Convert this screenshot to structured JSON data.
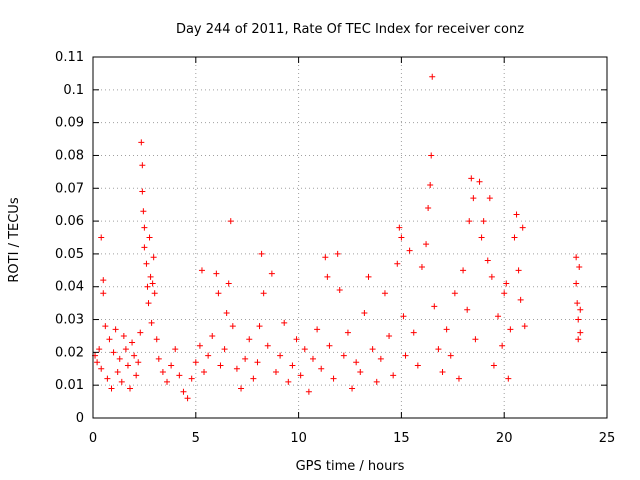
{
  "chart_data": {
    "type": "scatter",
    "title": "Day 244 of 2011, Rate Of TEC Index for receiver conz",
    "xlabel": "GPS time / hours",
    "ylabel": "ROTI / TECUs",
    "xlim": [
      0,
      25
    ],
    "ylim": [
      0,
      0.11
    ],
    "xticks": [
      "0",
      "5",
      "10",
      "15",
      "20",
      "25"
    ],
    "yticks": [
      "0",
      "0.01",
      "0.02",
      "0.03",
      "0.04",
      "0.05",
      "0.06",
      "0.07",
      "0.08",
      "0.09",
      "0.1",
      "0.11"
    ],
    "grid": true,
    "marker": "+",
    "color": "#ff0000",
    "series": [
      {
        "points": [
          [
            0.1,
            0.019
          ],
          [
            0.2,
            0.017
          ],
          [
            0.3,
            0.021
          ],
          [
            0.4,
            0.015
          ],
          [
            0.4,
            0.055
          ],
          [
            0.5,
            0.038
          ],
          [
            0.5,
            0.042
          ],
          [
            0.6,
            0.028
          ],
          [
            0.7,
            0.012
          ],
          [
            0.8,
            0.024
          ],
          [
            0.9,
            0.009
          ],
          [
            1.0,
            0.02
          ],
          [
            1.1,
            0.027
          ],
          [
            1.2,
            0.014
          ],
          [
            1.3,
            0.018
          ],
          [
            1.4,
            0.011
          ],
          [
            1.5,
            0.025
          ],
          [
            1.6,
            0.021
          ],
          [
            1.7,
            0.016
          ],
          [
            1.8,
            0.009
          ],
          [
            1.9,
            0.023
          ],
          [
            2.0,
            0.019
          ],
          [
            2.1,
            0.013
          ],
          [
            2.2,
            0.017
          ],
          [
            2.3,
            0.026
          ],
          [
            2.35,
            0.084
          ],
          [
            2.4,
            0.077
          ],
          [
            2.4,
            0.069
          ],
          [
            2.45,
            0.063
          ],
          [
            2.5,
            0.058
          ],
          [
            2.5,
            0.052
          ],
          [
            2.6,
            0.047
          ],
          [
            2.65,
            0.04
          ],
          [
            2.7,
            0.035
          ],
          [
            2.75,
            0.055
          ],
          [
            2.8,
            0.043
          ],
          [
            2.85,
            0.029
          ],
          [
            2.9,
            0.041
          ],
          [
            2.95,
            0.049
          ],
          [
            3.0,
            0.038
          ],
          [
            3.1,
            0.024
          ],
          [
            3.2,
            0.018
          ],
          [
            3.4,
            0.014
          ],
          [
            3.6,
            0.011
          ],
          [
            3.8,
            0.016
          ],
          [
            4.0,
            0.021
          ],
          [
            4.2,
            0.013
          ],
          [
            4.4,
            0.008
          ],
          [
            4.6,
            0.006
          ],
          [
            4.8,
            0.012
          ],
          [
            5.0,
            0.017
          ],
          [
            5.2,
            0.022
          ],
          [
            5.3,
            0.045
          ],
          [
            5.4,
            0.014
          ],
          [
            5.6,
            0.019
          ],
          [
            5.8,
            0.025
          ],
          [
            6.0,
            0.044
          ],
          [
            6.1,
            0.038
          ],
          [
            6.2,
            0.016
          ],
          [
            6.4,
            0.021
          ],
          [
            6.5,
            0.032
          ],
          [
            6.6,
            0.041
          ],
          [
            6.7,
            0.06
          ],
          [
            6.8,
            0.028
          ],
          [
            7.0,
            0.015
          ],
          [
            7.2,
            0.009
          ],
          [
            7.4,
            0.018
          ],
          [
            7.6,
            0.024
          ],
          [
            7.8,
            0.012
          ],
          [
            8.0,
            0.017
          ],
          [
            8.1,
            0.028
          ],
          [
            8.2,
            0.05
          ],
          [
            8.3,
            0.038
          ],
          [
            8.5,
            0.022
          ],
          [
            8.7,
            0.044
          ],
          [
            8.9,
            0.014
          ],
          [
            9.1,
            0.019
          ],
          [
            9.3,
            0.029
          ],
          [
            9.5,
            0.011
          ],
          [
            9.7,
            0.016
          ],
          [
            9.9,
            0.024
          ],
          [
            10.1,
            0.013
          ],
          [
            10.3,
            0.021
          ],
          [
            10.5,
            0.008
          ],
          [
            10.7,
            0.018
          ],
          [
            10.9,
            0.027
          ],
          [
            11.1,
            0.015
          ],
          [
            11.3,
            0.049
          ],
          [
            11.4,
            0.043
          ],
          [
            11.5,
            0.022
          ],
          [
            11.7,
            0.012
          ],
          [
            11.9,
            0.05
          ],
          [
            12.0,
            0.039
          ],
          [
            12.2,
            0.019
          ],
          [
            12.4,
            0.026
          ],
          [
            12.6,
            0.009
          ],
          [
            12.8,
            0.017
          ],
          [
            13.0,
            0.014
          ],
          [
            13.2,
            0.032
          ],
          [
            13.4,
            0.043
          ],
          [
            13.6,
            0.021
          ],
          [
            13.8,
            0.011
          ],
          [
            14.0,
            0.018
          ],
          [
            14.2,
            0.038
          ],
          [
            14.4,
            0.025
          ],
          [
            14.6,
            0.013
          ],
          [
            14.8,
            0.047
          ],
          [
            14.9,
            0.058
          ],
          [
            15.0,
            0.055
          ],
          [
            15.1,
            0.031
          ],
          [
            15.2,
            0.019
          ],
          [
            15.4,
            0.051
          ],
          [
            15.6,
            0.026
          ],
          [
            15.8,
            0.016
          ],
          [
            16.0,
            0.046
          ],
          [
            16.2,
            0.053
          ],
          [
            16.3,
            0.064
          ],
          [
            16.4,
            0.071
          ],
          [
            16.45,
            0.08
          ],
          [
            16.5,
            0.104
          ],
          [
            16.6,
            0.034
          ],
          [
            16.8,
            0.021
          ],
          [
            17.0,
            0.014
          ],
          [
            17.2,
            0.027
          ],
          [
            17.4,
            0.019
          ],
          [
            17.6,
            0.038
          ],
          [
            17.8,
            0.012
          ],
          [
            18.0,
            0.045
          ],
          [
            18.2,
            0.033
          ],
          [
            18.3,
            0.06
          ],
          [
            18.4,
            0.073
          ],
          [
            18.5,
            0.067
          ],
          [
            18.6,
            0.024
          ],
          [
            18.8,
            0.072
          ],
          [
            18.9,
            0.055
          ],
          [
            19.0,
            0.06
          ],
          [
            19.2,
            0.048
          ],
          [
            19.3,
            0.067
          ],
          [
            19.4,
            0.043
          ],
          [
            19.5,
            0.016
          ],
          [
            19.7,
            0.031
          ],
          [
            19.9,
            0.022
          ],
          [
            20.0,
            0.038
          ],
          [
            20.1,
            0.041
          ],
          [
            20.2,
            0.012
          ],
          [
            20.3,
            0.027
          ],
          [
            20.5,
            0.055
          ],
          [
            20.6,
            0.062
          ],
          [
            20.7,
            0.045
          ],
          [
            20.8,
            0.036
          ],
          [
            20.9,
            0.058
          ],
          [
            21.0,
            0.028
          ],
          [
            23.5,
            0.049
          ],
          [
            23.5,
            0.041
          ],
          [
            23.55,
            0.035
          ],
          [
            23.6,
            0.03
          ],
          [
            23.6,
            0.024
          ],
          [
            23.65,
            0.046
          ],
          [
            23.7,
            0.033
          ],
          [
            23.7,
            0.026
          ]
        ]
      }
    ]
  }
}
